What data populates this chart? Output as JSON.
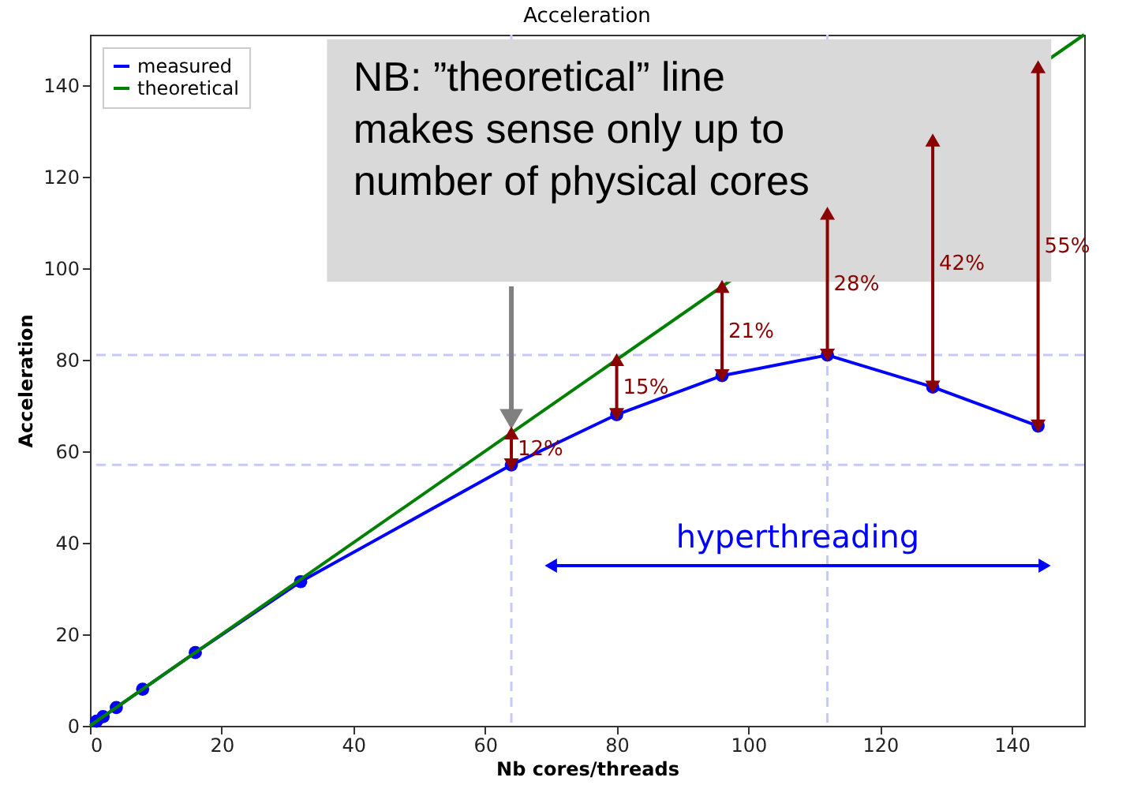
{
  "chart_data": {
    "type": "line",
    "title": "Acceleration",
    "xlabel": "Nb cores/threads",
    "ylabel": "Acceleration",
    "xlim": [
      0,
      151
    ],
    "ylim": [
      0,
      151
    ],
    "xticks": [
      0,
      20,
      40,
      60,
      80,
      100,
      120,
      140
    ],
    "yticks": [
      0,
      20,
      40,
      60,
      80,
      100,
      120,
      140
    ],
    "grid": false,
    "legend": "top left",
    "marker": "circle",
    "line_style": "solid",
    "series": [
      {
        "name": "measured",
        "color": "#0000ff",
        "x": [
          1,
          2,
          4,
          8,
          16,
          32,
          64,
          80,
          96,
          112,
          128,
          144
        ],
        "values": [
          1,
          2,
          4,
          8,
          16,
          31.5,
          57,
          68,
          76.5,
          81,
          74,
          65.5
        ]
      },
      {
        "name": "theoretical",
        "color": "#008000",
        "type": "line",
        "marker": "none",
        "x": [
          0,
          151
        ],
        "values": [
          0,
          151
        ]
      }
    ],
    "ref_lines": [
      {
        "axis": "y",
        "value": 81,
        "color": "#c8c8ff",
        "line_style": "dashed"
      },
      {
        "axis": "y",
        "value": 57,
        "color": "#c8c8ff",
        "line_style": "dashed"
      },
      {
        "axis": "x",
        "value": 64,
        "color": "#c8c8ff",
        "line_style": "dashed"
      },
      {
        "axis": "x",
        "value": 112,
        "color": "#c8c8ff",
        "line_style": "dashed"
      }
    ],
    "annotations": [
      "NB: ”theoretical” line\nmakes sense only up to\nnumber of physical cores",
      "hyperthreading",
      "12%",
      "15%",
      "21%",
      "28%",
      "42%",
      "55%"
    ]
  }
}
